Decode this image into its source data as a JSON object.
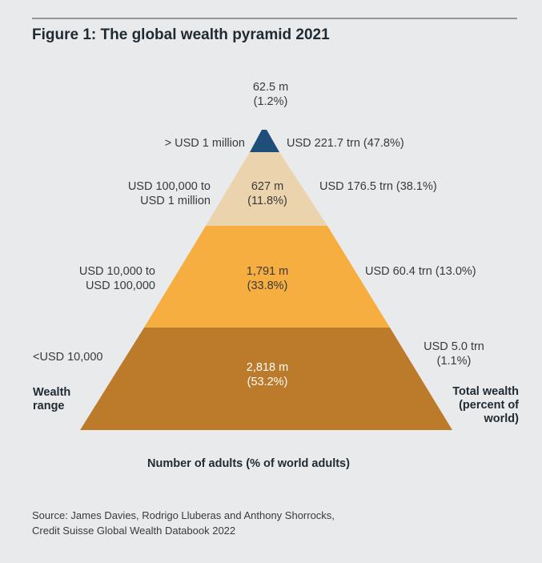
{
  "figure": {
    "title": "Figure 1: The global wealth pyramid 2021"
  },
  "tiers": [
    {
      "wealth_range": [
        "> USD 1 million"
      ],
      "adults": "62.5 m",
      "adults_pct": "(1.2%)",
      "total_wealth": [
        "USD 221.7 trn (47.8%)"
      ],
      "color": "#1f4e79"
    },
    {
      "wealth_range": [
        "USD 100,000 to",
        "USD 1 million"
      ],
      "adults": "627 m",
      "adults_pct": "(11.8%)",
      "total_wealth": [
        "USD 176.5 trn (38.1%)"
      ],
      "color": "#ebd3ad"
    },
    {
      "wealth_range": [
        "USD 10,000 to",
        "USD 100,000"
      ],
      "adults": "1,791 m",
      "adults_pct": "(33.8%)",
      "total_wealth": [
        "USD 60.4 trn (13.0%)"
      ],
      "color": "#f5ae3f"
    },
    {
      "wealth_range": [
        "<USD 10,000"
      ],
      "adults": "2,818 m",
      "adults_pct": "(53.2%)",
      "total_wealth": [
        "USD 5.0 trn",
        "(1.1%)"
      ],
      "color": "#bc7a2b"
    }
  ],
  "left_axis_label": [
    "Wealth",
    "range"
  ],
  "right_axis_label": [
    "Total wealth",
    "(percent of",
    "world)"
  ],
  "bottom_axis_label": "Number of adults (% of world adults)",
  "source": [
    "Source: James Davies, Rodrigo Lluberas and Anthony Shorrocks,",
    "Credit Suisse Global Wealth Databook 2022"
  ]
}
